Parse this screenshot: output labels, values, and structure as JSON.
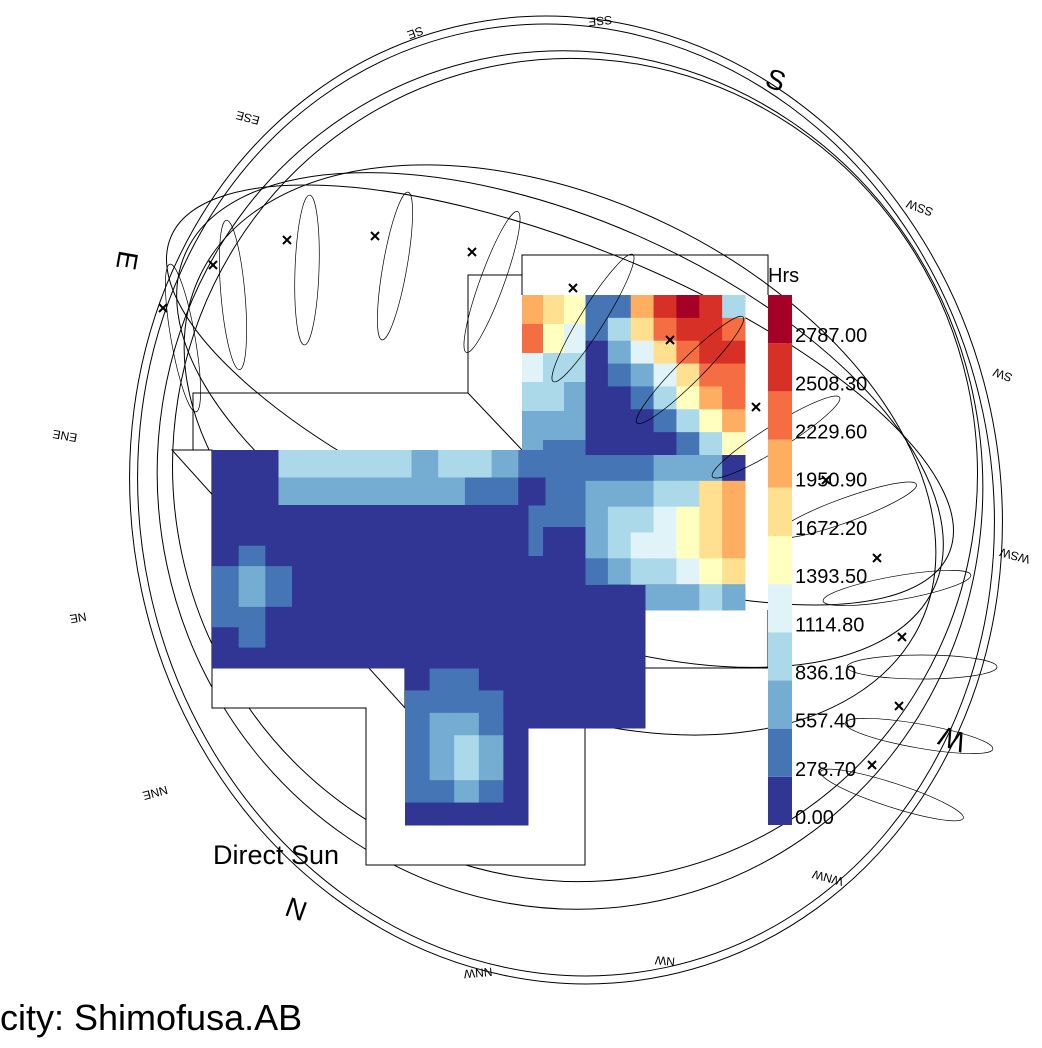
{
  "title": "Direct Sun",
  "caption": "city: Shimofusa.AB",
  "compass": [
    "S",
    "SSW",
    "SW",
    "WSW",
    "W",
    "WNW",
    "NW",
    "NNW",
    "N",
    "NNE",
    "NE",
    "ENE",
    "E",
    "ESE",
    "SE",
    "SSE"
  ],
  "legend": {
    "unit": "Hrs",
    "lim": [
      0,
      3065.7
    ],
    "ticks": [
      {
        "value": 0,
        "label": "0.00"
      },
      {
        "value": 278.7,
        "label": "278.70"
      },
      {
        "value": 557.4,
        "label": "557.40"
      },
      {
        "value": 836.1,
        "label": "836.10"
      },
      {
        "value": 1114.8,
        "label": "1114.80"
      },
      {
        "value": 1393.5,
        "label": "1393.50"
      },
      {
        "value": 1672.2,
        "label": "1672.20"
      },
      {
        "value": 1950.9,
        "label": "1950.90"
      },
      {
        "value": 2229.6,
        "label": "2229.60"
      },
      {
        "value": 2508.3,
        "label": "2508.30"
      },
      {
        "value": 2787,
        "label": "2787.00"
      }
    ],
    "colors": [
      "#313695",
      "#4575b4",
      "#74add1",
      "#abd9e9",
      "#e0f3f8",
      "#ffffbf",
      "#fee090",
      "#fdae61",
      "#f46d43",
      "#d73027",
      "#a50026"
    ]
  },
  "zones": [
    {
      "values": [
        [
          420,
          420,
          2090,
          2650,
          2930,
          2650,
          980
        ],
        [
          420,
          980,
          1810,
          2370,
          2650,
          2650,
          2370
        ],
        [
          140,
          700,
          1250,
          1810,
          2370,
          2650,
          2650
        ],
        [
          140,
          420,
          700,
          1250,
          1810,
          2370,
          2370
        ],
        [
          140,
          140,
          420,
          980,
          1530,
          2090,
          2370
        ],
        [
          140,
          140,
          140,
          420,
          980,
          1530,
          2090
        ],
        [
          140,
          140,
          140,
          140,
          420,
          980,
          1530
        ]
      ]
    },
    {
      "values": [
        [
          420,
          420,
          420,
          700,
          700,
          700,
          140
        ],
        [
          700,
          700,
          700,
          980,
          980,
          1810,
          2090
        ],
        [
          700,
          980,
          980,
          1250,
          1530,
          1810,
          2090
        ],
        [
          700,
          980,
          1250,
          1250,
          1530,
          1810,
          2090
        ],
        [
          420,
          700,
          980,
          980,
          1250,
          1530,
          1810
        ],
        [
          420,
          420,
          700,
          700,
          700,
          980,
          700
        ]
      ]
    },
    {
      "values": [
        [
          2090,
          1810,
          1530
        ],
        [
          2370,
          1530,
          1250
        ],
        [
          1250,
          980,
          980
        ],
        [
          980,
          980,
          700
        ],
        [
          700,
          700,
          700
        ],
        [
          700,
          420,
          420
        ],
        [
          700,
          420,
          420
        ],
        [
          420,
          420,
          420
        ],
        [
          420,
          140,
          140
        ],
        [
          140,
          140,
          140
        ]
      ]
    },
    {
      "values": [
        [
          980,
          980,
          980,
          980,
          980,
          700,
          980,
          980,
          700,
          420
        ],
        [
          700,
          700,
          700,
          700,
          700,
          700,
          700,
          420,
          420,
          140
        ]
      ]
    },
    {
      "values": [
        [
          140,
          140,
          140
        ],
        [
          140,
          140,
          140
        ],
        [
          140,
          420,
          140
        ],
        [
          420,
          700,
          420
        ],
        [
          420,
          700,
          420
        ],
        [
          420,
          420,
          140
        ],
        [
          140,
          420,
          140
        ],
        [
          140,
          140,
          140
        ]
      ]
    },
    {
      "values": [
        [
          140,
          420,
          420,
          140,
          140
        ],
        [
          420,
          420,
          420,
          420,
          140
        ],
        [
          420,
          700,
          700,
          420,
          140
        ],
        [
          420,
          700,
          980,
          700,
          140
        ],
        [
          420,
          700,
          980,
          700,
          140
        ],
        [
          420,
          420,
          700,
          420,
          140
        ],
        [
          140,
          140,
          140,
          140,
          140
        ]
      ]
    },
    {
      "values": [
        [
          140
        ]
      ]
    },
    {
      "values": [
        [
          140
        ]
      ]
    },
    {
      "values": [
        [
          140
        ]
      ]
    }
  ]
}
